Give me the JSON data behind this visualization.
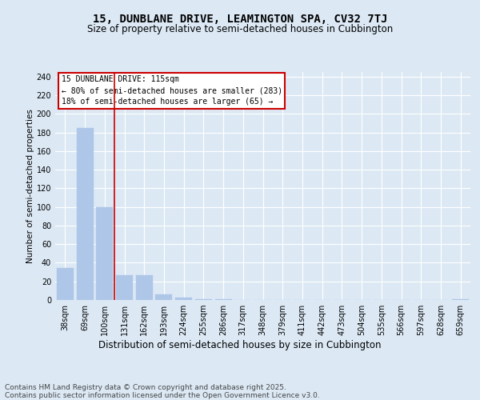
{
  "title": "15, DUNBLANE DRIVE, LEAMINGTON SPA, CV32 7TJ",
  "subtitle": "Size of property relative to semi-detached houses in Cubbington",
  "xlabel": "Distribution of semi-detached houses by size in Cubbington",
  "ylabel": "Number of semi-detached properties",
  "bins": [
    "38sqm",
    "69sqm",
    "100sqm",
    "131sqm",
    "162sqm",
    "193sqm",
    "224sqm",
    "255sqm",
    "286sqm",
    "317sqm",
    "348sqm",
    "379sqm",
    "411sqm",
    "442sqm",
    "473sqm",
    "504sqm",
    "535sqm",
    "566sqm",
    "597sqm",
    "628sqm",
    "659sqm"
  ],
  "values": [
    34,
    185,
    100,
    27,
    27,
    6,
    3,
    1,
    1,
    0,
    0,
    0,
    0,
    0,
    0,
    0,
    0,
    0,
    0,
    0,
    1
  ],
  "bar_color": "#aec6e8",
  "bar_edge_color": "#aec6e8",
  "vline_color": "#cc0000",
  "annotation_text": "15 DUNBLANE DRIVE: 115sqm\n← 80% of semi-detached houses are smaller (283)\n18% of semi-detached houses are larger (65) →",
  "annotation_box_color": "#ffffff",
  "annotation_edge_color": "#cc0000",
  "bg_color": "#dce9f5",
  "plot_bg_color": "#dce9f5",
  "grid_color": "#ffffff",
  "yticks": [
    0,
    20,
    40,
    60,
    80,
    100,
    120,
    140,
    160,
    180,
    200,
    220,
    240
  ],
  "ylim": [
    0,
    245
  ],
  "footer": "Contains HM Land Registry data © Crown copyright and database right 2025.\nContains public sector information licensed under the Open Government Licence v3.0.",
  "title_fontsize": 10,
  "subtitle_fontsize": 8.5,
  "xlabel_fontsize": 8.5,
  "ylabel_fontsize": 7.5,
  "tick_fontsize": 7,
  "footer_fontsize": 6.5,
  "annotation_fontsize": 7
}
